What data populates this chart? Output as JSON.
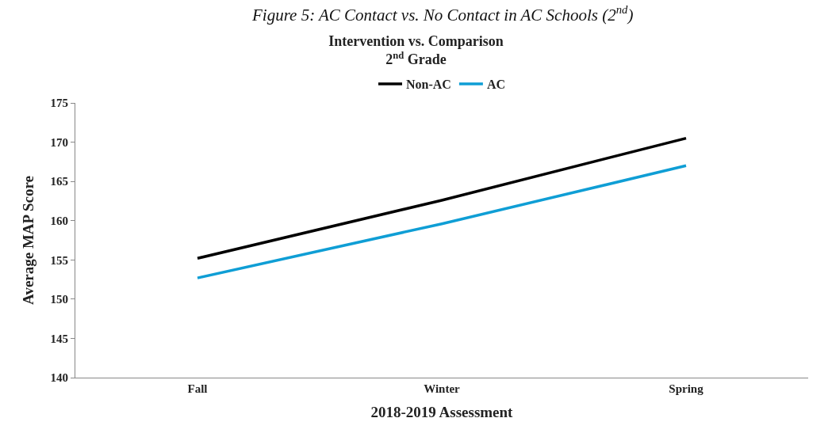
{
  "chart_data": {
    "type": "line",
    "title": "Intervention vs. Comparison\n2$^{nd}$ Grade",
    "xlabel": "2018-2019 Assessment",
    "ylabel": "Average MAP Score",
    "annotations": [
      "Figure 5: AC Contact vs. No Contact in AC Schools (2$^{nd}$)"
    ],
    "categories": [
      "Fall",
      "Winter",
      "Spring"
    ],
    "series": [
      {
        "name": "Non-AC",
        "color": "#000000",
        "values": [
          155.2,
          162.6,
          170.5
        ]
      },
      {
        "name": "AC",
        "color": "#0f9ed5",
        "values": [
          152.7,
          159.6,
          167.0
        ]
      }
    ],
    "ylim": [
      140,
      175
    ],
    "yticks": [
      140,
      145,
      150,
      155,
      160,
      165,
      170,
      175
    ],
    "legend": "top",
    "marker": "none",
    "line_style": "solid"
  }
}
